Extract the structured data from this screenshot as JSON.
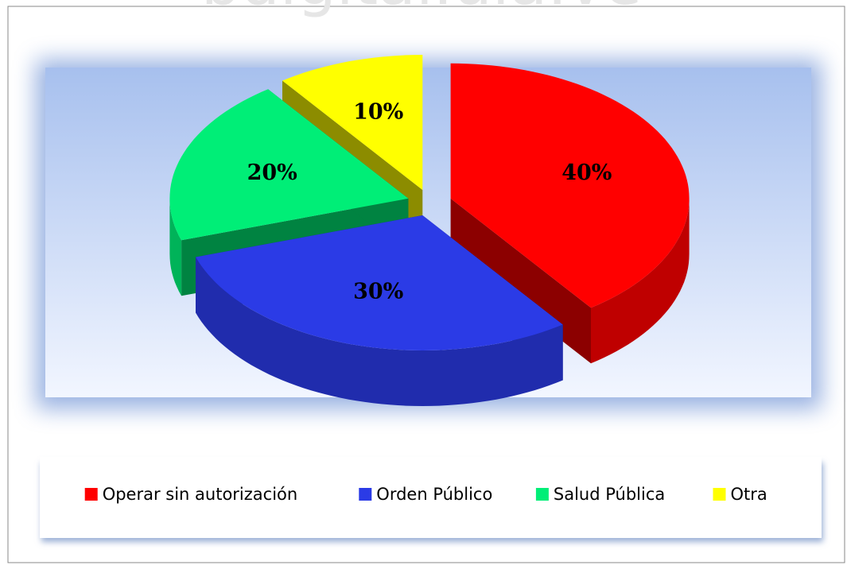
{
  "watermark": "bdigital.ula.ve",
  "chart_data": {
    "type": "pie3d",
    "categories": [
      "Operar sin autorización",
      "Orden Público",
      "Salud Pública",
      "Otra"
    ],
    "values": [
      40,
      30,
      20,
      10
    ],
    "value_labels": [
      "40%",
      "30%",
      "20%",
      "10%"
    ],
    "colors": [
      "#ff0000",
      "#2b3be6",
      "#00ee77",
      "#ffff00"
    ],
    "legend": "bottom"
  }
}
